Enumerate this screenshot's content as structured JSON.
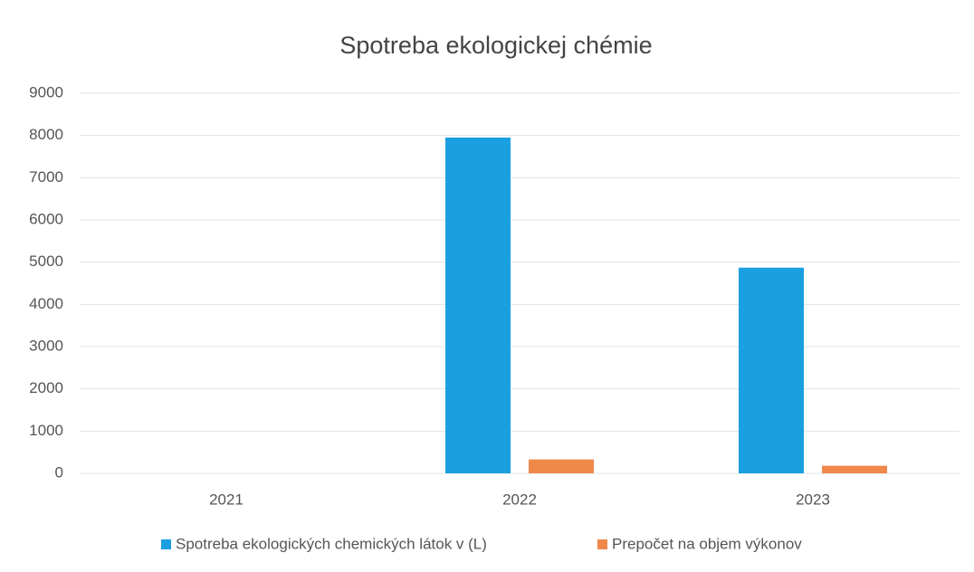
{
  "chart_data": {
    "type": "bar",
    "title": "Spotreba ekologickej chémie",
    "categories": [
      "2021",
      "2022",
      "2023"
    ],
    "series": [
      {
        "name": "Spotreba ekologických chemických látok v (L)",
        "color": "#1a9fe0",
        "values": [
          0,
          7950,
          4870
        ]
      },
      {
        "name": "Prepočet na objem výkonov",
        "color": "#f0884a",
        "values": [
          0,
          330,
          180
        ]
      }
    ],
    "ylim": [
      0,
      9000
    ],
    "yticks": [
      0,
      1000,
      2000,
      3000,
      4000,
      5000,
      6000,
      7000,
      8000,
      9000
    ],
    "grid": true,
    "legend": "bottom"
  }
}
